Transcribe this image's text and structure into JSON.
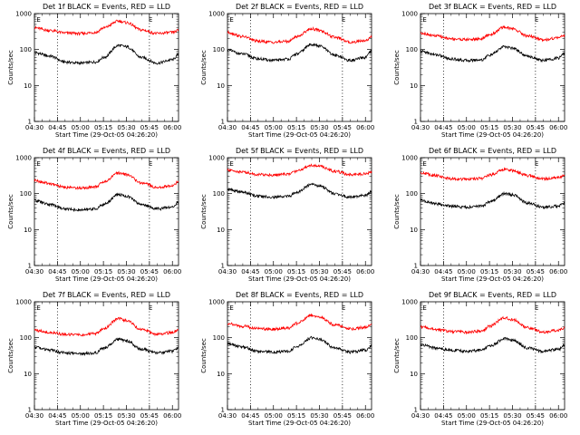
{
  "figure": {
    "panel_rows": 3,
    "panel_cols": 3,
    "colors": {
      "events": "#000000",
      "lld": "#ff0000",
      "axes": "#000000",
      "background": "#ffffff"
    }
  },
  "chart_data": [
    {
      "type": "line",
      "title": "Det 1f BLACK = Events, RED = LLD",
      "xlabel": "Start Time (29-Oct-05 04:26:20)",
      "ylabel": "Counts/sec",
      "x_ticks": [
        "04:30",
        "04:45",
        "05:00",
        "05:15",
        "05:30",
        "05:45",
        "06:00"
      ],
      "x_tick_minutes": [
        30,
        45,
        60,
        75,
        90,
        105,
        120
      ],
      "xlim_minutes": [
        30,
        124
      ],
      "yscale": "log",
      "ylim": [
        1,
        1000
      ],
      "y_ticks": [
        "1",
        "10",
        "100",
        "1000"
      ],
      "y_tick_values": [
        1,
        10,
        100,
        1000
      ],
      "markers": [
        {
          "label": "E",
          "x_minutes": 32
        },
        {
          "label": "E",
          "x_minutes": 105
        }
      ],
      "vlines_minutes": [
        45,
        105
      ],
      "x_minutes": [
        30,
        40,
        50,
        60,
        70,
        75,
        85,
        90,
        100,
        110,
        120,
        124
      ],
      "series": [
        {
          "name": "BLACK = Events",
          "color": "#000000",
          "values": [
            82,
            66,
            45,
            42,
            45,
            60,
            130,
            120,
            60,
            42,
            52,
            72
          ]
        },
        {
          "name": "RED = LLD",
          "color": "#ff0000",
          "values": [
            400,
            340,
            290,
            280,
            300,
            400,
            620,
            560,
            350,
            280,
            300,
            340
          ]
        }
      ]
    },
    {
      "type": "line",
      "title": "Det 2f BLACK = Events, RED = LLD",
      "xlabel": "Start Time (29-Oct-05 04:26:20)",
      "ylabel": "Counts/sec",
      "x_ticks": [
        "04:30",
        "04:45",
        "05:00",
        "05:15",
        "05:30",
        "05:45",
        "06:00"
      ],
      "x_tick_minutes": [
        30,
        45,
        60,
        75,
        90,
        105,
        120
      ],
      "xlim_minutes": [
        30,
        124
      ],
      "yscale": "log",
      "ylim": [
        1,
        1000
      ],
      "y_ticks": [
        "1",
        "10",
        "100",
        "1000"
      ],
      "y_tick_values": [
        1,
        10,
        100,
        1000
      ],
      "markers": [
        {
          "label": "E",
          "x_minutes": 32
        },
        {
          "label": "E",
          "x_minutes": 105
        }
      ],
      "vlines_minutes": [
        45,
        105
      ],
      "x_minutes": [
        30,
        40,
        50,
        60,
        70,
        75,
        85,
        90,
        100,
        110,
        120,
        124
      ],
      "series": [
        {
          "name": "BLACK = Events",
          "color": "#000000",
          "values": [
            95,
            75,
            55,
            50,
            55,
            75,
            140,
            125,
            70,
            50,
            60,
            90
          ]
        },
        {
          "name": "RED = LLD",
          "color": "#ff0000",
          "values": [
            300,
            230,
            170,
            160,
            170,
            230,
            380,
            340,
            220,
            160,
            180,
            220
          ]
        }
      ]
    },
    {
      "type": "line",
      "title": "Det 3f BLACK = Events, RED = LLD",
      "xlabel": "Start Time (29-Oct-05 04:26:20)",
      "ylabel": "Counts/sec",
      "x_ticks": [
        "04:30",
        "04:45",
        "05:00",
        "05:15",
        "05:30",
        "05:45",
        "06:00"
      ],
      "x_tick_minutes": [
        30,
        45,
        60,
        75,
        90,
        105,
        120
      ],
      "xlim_minutes": [
        30,
        124
      ],
      "yscale": "log",
      "ylim": [
        1,
        1000
      ],
      "y_ticks": [
        "1",
        "10",
        "100",
        "1000"
      ],
      "y_tick_values": [
        1,
        10,
        100,
        1000
      ],
      "markers": [
        {
          "label": "E",
          "x_minutes": 32
        },
        {
          "label": "E",
          "x_minutes": 105
        }
      ],
      "vlines_minutes": [
        45,
        105
      ],
      "x_minutes": [
        30,
        40,
        50,
        60,
        70,
        75,
        85,
        90,
        100,
        110,
        120,
        124
      ],
      "series": [
        {
          "name": "BLACK = Events",
          "color": "#000000",
          "values": [
            90,
            72,
            55,
            50,
            52,
            70,
            120,
            110,
            65,
            50,
            58,
            80
          ]
        },
        {
          "name": "RED = LLD",
          "color": "#ff0000",
          "values": [
            290,
            240,
            200,
            190,
            200,
            260,
            420,
            380,
            240,
            190,
            210,
            250
          ]
        }
      ]
    },
    {
      "type": "line",
      "title": "Det 4f BLACK = Events, RED = LLD",
      "xlabel": "Start Time (29-Oct-05 04:26:20)",
      "ylabel": "Counts/sec",
      "x_ticks": [
        "04:30",
        "04:45",
        "05:00",
        "05:15",
        "05:30",
        "05:45",
        "06:00"
      ],
      "x_tick_minutes": [
        30,
        45,
        60,
        75,
        90,
        105,
        120
      ],
      "xlim_minutes": [
        30,
        124
      ],
      "yscale": "log",
      "ylim": [
        1,
        1000
      ],
      "y_ticks": [
        "1",
        "10",
        "100",
        "1000"
      ],
      "y_tick_values": [
        1,
        10,
        100,
        1000
      ],
      "markers": [
        {
          "label": "E",
          "x_minutes": 32
        },
        {
          "label": "E",
          "x_minutes": 105
        }
      ],
      "vlines_minutes": [
        45,
        105
      ],
      "x_minutes": [
        30,
        40,
        50,
        60,
        70,
        75,
        85,
        90,
        100,
        110,
        120,
        124
      ],
      "series": [
        {
          "name": "BLACK = Events",
          "color": "#000000",
          "values": [
            65,
            50,
            38,
            35,
            38,
            50,
            95,
            85,
            50,
            38,
            42,
            58
          ]
        },
        {
          "name": "RED = LLD",
          "color": "#ff0000",
          "values": [
            230,
            190,
            150,
            145,
            155,
            210,
            380,
            340,
            200,
            150,
            165,
            220
          ]
        }
      ]
    },
    {
      "type": "line",
      "title": "Det 5f BLACK = Events, RED = LLD",
      "xlabel": "Start Time (29-Oct-05 04:26:20)",
      "ylabel": "Counts/sec",
      "x_ticks": [
        "04:30",
        "04:45",
        "05:00",
        "05:15",
        "05:30",
        "05:45",
        "06:00"
      ],
      "x_tick_minutes": [
        30,
        45,
        60,
        75,
        90,
        105,
        120
      ],
      "xlim_minutes": [
        30,
        124
      ],
      "yscale": "log",
      "ylim": [
        1,
        1000
      ],
      "y_ticks": [
        "1",
        "10",
        "100",
        "1000"
      ],
      "y_tick_values": [
        1,
        10,
        100,
        1000
      ],
      "markers": [
        {
          "label": "E",
          "x_minutes": 32
        },
        {
          "label": "E",
          "x_minutes": 105
        }
      ],
      "vlines_minutes": [
        45,
        105
      ],
      "x_minutes": [
        30,
        40,
        50,
        60,
        70,
        75,
        85,
        90,
        100,
        110,
        120,
        124
      ],
      "series": [
        {
          "name": "BLACK = Events",
          "color": "#000000",
          "values": [
            130,
            110,
            85,
            80,
            85,
            110,
            180,
            165,
            100,
            80,
            90,
            115
          ]
        },
        {
          "name": "RED = LLD",
          "color": "#ff0000",
          "values": [
            450,
            400,
            340,
            330,
            350,
            430,
            620,
            580,
            420,
            340,
            360,
            400
          ]
        }
      ]
    },
    {
      "type": "line",
      "title": "Det 6f BLACK = Events, RED = LLD",
      "xlabel": "Start Time (29-Oct-05 04:26:20)",
      "ylabel": "Counts/sec",
      "x_ticks": [
        "04:30",
        "04:45",
        "05:00",
        "05:15",
        "05:30",
        "05:45",
        "06:00"
      ],
      "x_tick_minutes": [
        30,
        45,
        60,
        75,
        90,
        105,
        120
      ],
      "xlim_minutes": [
        30,
        124
      ],
      "yscale": "log",
      "ylim": [
        1,
        1000
      ],
      "y_ticks": [
        "1",
        "10",
        "100",
        "1000"
      ],
      "y_tick_values": [
        1,
        10,
        100,
        1000
      ],
      "markers": [
        {
          "label": "E",
          "x_minutes": 32
        },
        {
          "label": "E",
          "x_minutes": 105
        }
      ],
      "vlines_minutes": [
        45,
        105
      ],
      "x_minutes": [
        30,
        40,
        50,
        60,
        70,
        75,
        85,
        90,
        100,
        110,
        120,
        124
      ],
      "series": [
        {
          "name": "BLACK = Events",
          "color": "#000000",
          "values": [
            65,
            52,
            45,
            42,
            45,
            58,
            100,
            92,
            55,
            42,
            45,
            55
          ]
        },
        {
          "name": "RED = LLD",
          "color": "#ff0000",
          "values": [
            380,
            320,
            260,
            250,
            265,
            330,
            480,
            440,
            320,
            260,
            280,
            320
          ]
        }
      ]
    },
    {
      "type": "line",
      "title": "Det 7f BLACK = Events, RED = LLD",
      "xlabel": "Start Time (29-Oct-05 04:26:20)",
      "ylabel": "Counts/sec",
      "x_ticks": [
        "04:30",
        "04:45",
        "05:00",
        "05:15",
        "05:30",
        "05:45",
        "06:00"
      ],
      "x_tick_minutes": [
        30,
        45,
        60,
        75,
        90,
        105,
        120
      ],
      "xlim_minutes": [
        30,
        124
      ],
      "yscale": "log",
      "ylim": [
        1,
        1000
      ],
      "y_ticks": [
        "1",
        "10",
        "100",
        "1000"
      ],
      "y_tick_values": [
        1,
        10,
        100,
        1000
      ],
      "markers": [
        {
          "label": "E",
          "x_minutes": 32
        },
        {
          "label": "E",
          "x_minutes": 105
        }
      ],
      "vlines_minutes": [
        45,
        105
      ],
      "x_minutes": [
        30,
        40,
        50,
        60,
        70,
        75,
        85,
        90,
        100,
        110,
        120,
        124
      ],
      "series": [
        {
          "name": "BLACK = Events",
          "color": "#000000",
          "values": [
            55,
            45,
            38,
            36,
            38,
            52,
            90,
            82,
            48,
            38,
            42,
            52
          ]
        },
        {
          "name": "RED = LLD",
          "color": "#ff0000",
          "values": [
            160,
            140,
            125,
            120,
            130,
            180,
            340,
            300,
            170,
            125,
            140,
            165
          ]
        }
      ]
    },
    {
      "type": "line",
      "title": "Det 8f BLACK = Events, RED = LLD",
      "xlabel": "Start Time (29-Oct-05 04:26:20)",
      "ylabel": "Counts/sec",
      "x_ticks": [
        "04:30",
        "04:45",
        "05:00",
        "05:15",
        "05:30",
        "05:45",
        "06:00"
      ],
      "x_tick_minutes": [
        30,
        45,
        60,
        75,
        90,
        105,
        120
      ],
      "xlim_minutes": [
        30,
        124
      ],
      "yscale": "log",
      "ylim": [
        1,
        1000
      ],
      "y_ticks": [
        "1",
        "10",
        "100",
        "1000"
      ],
      "y_tick_values": [
        1,
        10,
        100,
        1000
      ],
      "markers": [
        {
          "label": "E",
          "x_minutes": 32
        },
        {
          "label": "E",
          "x_minutes": 105
        }
      ],
      "vlines_minutes": [
        45,
        105
      ],
      "x_minutes": [
        30,
        40,
        50,
        60,
        70,
        75,
        85,
        90,
        100,
        110,
        120,
        124
      ],
      "series": [
        {
          "name": "BLACK = Events",
          "color": "#000000",
          "values": [
            68,
            55,
            42,
            40,
            42,
            56,
            100,
            90,
            52,
            40,
            45,
            58
          ]
        },
        {
          "name": "RED = LLD",
          "color": "#ff0000",
          "values": [
            250,
            210,
            180,
            175,
            185,
            250,
            420,
            380,
            230,
            175,
            195,
            240
          ]
        }
      ]
    },
    {
      "type": "line",
      "title": "Det 9f BLACK = Events, RED = LLD",
      "xlabel": "Start Time (29-Oct-05 04:26:20)",
      "ylabel": "Counts/sec",
      "x_ticks": [
        "04:30",
        "04:45",
        "05:00",
        "05:15",
        "05:30",
        "05:45",
        "06:00"
      ],
      "x_tick_minutes": [
        30,
        45,
        60,
        75,
        90,
        105,
        120
      ],
      "xlim_minutes": [
        30,
        124
      ],
      "yscale": "log",
      "ylim": [
        1,
        1000
      ],
      "y_ticks": [
        "1",
        "10",
        "100",
        "1000"
      ],
      "y_tick_values": [
        1,
        10,
        100,
        1000
      ],
      "markers": [
        {
          "label": "E",
          "x_minutes": 32
        },
        {
          "label": "E",
          "x_minutes": 105
        }
      ],
      "vlines_minutes": [
        45,
        105
      ],
      "x_minutes": [
        30,
        40,
        50,
        60,
        70,
        75,
        85,
        90,
        100,
        110,
        120,
        124
      ],
      "series": [
        {
          "name": "BLACK = Events",
          "color": "#000000",
          "values": [
            65,
            52,
            45,
            42,
            45,
            58,
            95,
            85,
            52,
            42,
            48,
            62
          ]
        },
        {
          "name": "RED = LLD",
          "color": "#ff0000",
          "values": [
            200,
            170,
            150,
            145,
            155,
            210,
            360,
            320,
            190,
            145,
            160,
            190
          ]
        }
      ]
    }
  ]
}
